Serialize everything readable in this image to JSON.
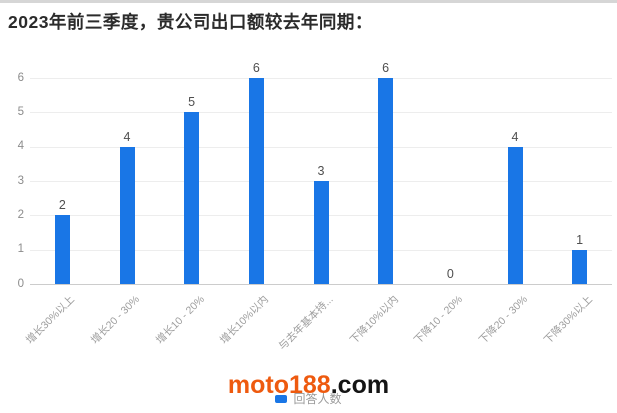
{
  "page": {
    "title": "2023年前三季度，贵公司出口额较去年同期："
  },
  "legend": {
    "label": "回答人数",
    "marker_color": "#1976e6"
  },
  "watermark": {
    "brand": "moto188",
    "suffix": ".com",
    "brand_color": "#ee5a0f",
    "suffix_color": "#141414"
  },
  "chart_data": {
    "type": "bar",
    "title": "2023年前三季度，贵公司出口额较去年同期：",
    "categories": [
      "增长30%以上",
      "增长20 - 30%",
      "增长10 - 20%",
      "增长10%以内",
      "与去年基本持...",
      "下降10%以内",
      "下降10 - 20%",
      "下降20 - 30%",
      "下降30%以上"
    ],
    "values": [
      2,
      4,
      5,
      6,
      3,
      6,
      0,
      4,
      1
    ],
    "series_name": "回答人数",
    "xlabel": "",
    "ylabel": "",
    "ylim": [
      0,
      6
    ],
    "y_ticks": [
      0,
      1,
      2,
      3,
      4,
      5,
      6
    ],
    "grid": true,
    "bar_color": "#1976e6",
    "legend_position": "bottom",
    "value_labels_shown": true
  }
}
